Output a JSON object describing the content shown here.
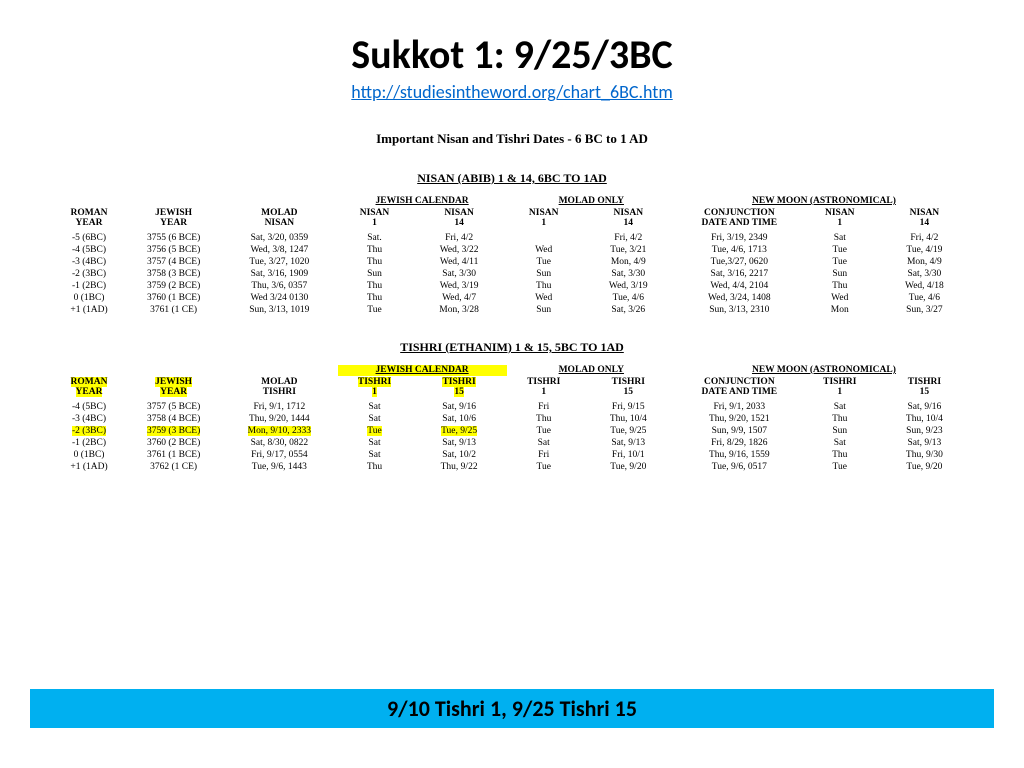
{
  "title": "Sukkot 1: 9/25/3BC",
  "link": "http://studiesintheword.org/chart_6BC.htm",
  "chartTitle": "Important Nisan and Tishri Dates - 6 BC to 1 AD",
  "footer": "9/10 Tishri 1, 9/25 Tishri 15",
  "colors": {
    "highlight": "#ffff00",
    "footer_bg": "#00b0f0",
    "link": "#0066cc",
    "background": "#ffffff"
  },
  "nisan": {
    "sectionTitle": "NISAN (ABIB)  1 & 14,  6BC TO 1AD",
    "groups": [
      "",
      "",
      "",
      "JEWISH CALENDAR",
      "",
      "MOLAD ONLY",
      "",
      "NEW MOON (ASTRONOMICAL)",
      "",
      ""
    ],
    "groupSpans": [
      1,
      1,
      1,
      2,
      0,
      2,
      0,
      3,
      0,
      0
    ],
    "columns": [
      "ROMAN\nYEAR",
      "JEWISH\nYEAR",
      "MOLAD\nNISAN",
      "NISAN\n1",
      "NISAN\n14",
      "NISAN\n1",
      "NISAN\n14",
      "CONJUNCTION\nDATE AND TIME",
      "NISAN\n1",
      "NISAN\n14"
    ],
    "rows": [
      [
        "-5 (6BC)",
        "3755 (6 BCE)",
        "Sat, 3/20, 0359",
        "Sat.",
        "Fri, 4/2",
        "",
        "Fri, 4/2",
        "Fri, 3/19, 2349",
        "Sat",
        "Fri, 4/2"
      ],
      [
        "-4 (5BC)",
        "3756 (5 BCE)",
        "Wed, 3/8, 1247",
        "Thu",
        "Wed, 3/22",
        "Wed",
        "Tue, 3/21",
        "Tue, 4/6, 1713",
        "Tue",
        "Tue, 4/19"
      ],
      [
        "-3 (4BC)",
        "3757 (4 BCE)",
        "Tue, 3/27, 1020",
        "Thu",
        "Wed, 4/11",
        "Tue",
        "Mon, 4/9",
        "Tue,3/27, 0620",
        "Tue",
        "Mon, 4/9"
      ],
      [
        "-2 (3BC)",
        "3758 (3 BCE)",
        "Sat, 3/16, 1909",
        "Sun",
        "Sat, 3/30",
        "Sun",
        "Sat, 3/30",
        "Sat, 3/16, 2217",
        "Sun",
        "Sat, 3/30"
      ],
      [
        "-1 (2BC)",
        "3759 (2 BCE)",
        "Thu, 3/6, 0357",
        "Thu",
        "Wed, 3/19",
        "Thu",
        "Wed, 3/19",
        "Wed, 4/4, 2104",
        "Thu",
        "Wed, 4/18"
      ],
      [
        "0 (1BC)",
        "3760 (1 BCE)",
        "Wed 3/24 0130",
        "Thu",
        "Wed, 4/7",
        "Wed",
        "Tue, 4/6",
        "Wed, 3/24, 1408",
        "Wed",
        "Tue, 4/6"
      ],
      [
        "+1 (1AD)",
        "3761 (1 CE)",
        "Sun, 3/13, 1019",
        "Tue",
        "Mon, 3/28",
        "Sun",
        "Sat, 3/26",
        "Sun, 3/13, 2310",
        "Mon",
        "Sun, 3/27"
      ]
    ]
  },
  "tishri": {
    "sectionTitle": "TISHRI (ETHANIM)  1 & 15,  5BC TO 1AD",
    "groups": [
      "",
      "",
      "",
      "JEWISH CALENDAR",
      "",
      "MOLAD ONLY",
      "",
      "NEW MOON (ASTRONOMICAL)",
      "",
      ""
    ],
    "groupSpans": [
      1,
      1,
      1,
      2,
      0,
      2,
      0,
      3,
      0,
      0
    ],
    "columns": [
      "ROMAN\nYEAR",
      "JEWISH\nYEAR",
      "MOLAD\nTISHRI",
      "TISHRI\n1",
      "TISHRI\n15",
      "TISHRI\n1",
      "TISHRI\n15",
      "CONJUNCTION\nDATE AND TIME",
      "TISHRI\n1",
      "TISHRI\n15"
    ],
    "headerHighlights": [
      true,
      true,
      false,
      true,
      true,
      false,
      false,
      false,
      false,
      false
    ],
    "groupHighlights": [
      false,
      false,
      false,
      true,
      false,
      false,
      false,
      false,
      false,
      false
    ],
    "rows": [
      [
        "-4 (5BC)",
        "3757 (5 BCE)",
        "Fri, 9/1, 1712",
        "Sat",
        "Sat, 9/16",
        "Fri",
        "Fri, 9/15",
        "Fri, 9/1, 2033",
        "Sat",
        "Sat, 9/16"
      ],
      [
        "-3 (4BC)",
        "3758 (4 BCE)",
        "Thu, 9/20, 1444",
        "Sat",
        "Sat, 10/6",
        "Thu",
        "Thu, 10/4",
        "Thu, 9/20, 1521",
        "Thu",
        "Thu, 10/4"
      ],
      [
        "-2 (3BC)",
        "3759 (3 BCE)",
        "Mon, 9/10, 2333",
        "Tue",
        "Tue, 9/25",
        "Tue",
        "Tue, 9/25",
        "Sun, 9/9, 1507",
        "Sun",
        "Sun, 9/23"
      ],
      [
        "-1 (2BC)",
        "3760 (2 BCE)",
        "Sat, 8/30, 0822",
        "Sat",
        "Sat, 9/13",
        "Sat",
        "Sat, 9/13",
        "Fri, 8/29, 1826",
        "Sat",
        "Sat, 9/13"
      ],
      [
        "0 (1BC)",
        "3761 (1 BCE)",
        "Fri, 9/17, 0554",
        "Sat",
        "Sat, 10/2",
        "Fri",
        "Fri, 10/1",
        "Thu, 9/16, 1559",
        "Thu",
        "Thu, 9/30"
      ],
      [
        "+1 (1AD)",
        "3762 (1 CE)",
        "Tue, 9/6, 1443",
        "Thu",
        "Thu, 9/22",
        "Tue",
        "Tue, 9/20",
        "Tue, 9/6, 0517",
        "Tue",
        "Tue, 9/20"
      ]
    ],
    "rowHighlights": [
      null,
      null,
      [
        true,
        true,
        true,
        true,
        true,
        false,
        false,
        false,
        false,
        false
      ],
      null,
      null,
      null
    ]
  }
}
